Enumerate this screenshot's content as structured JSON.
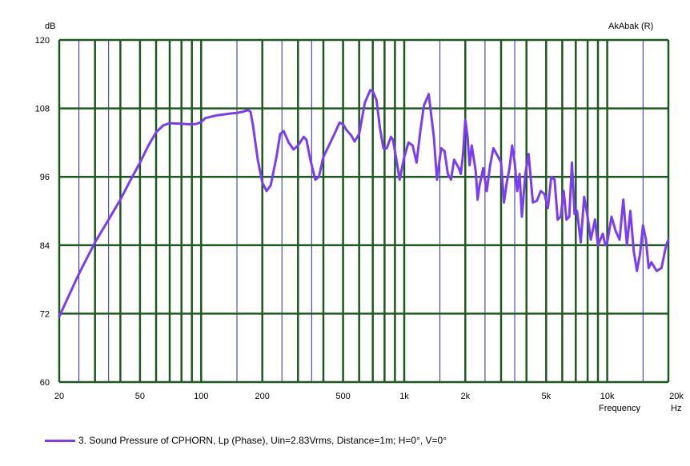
{
  "chart_data": {
    "type": "line",
    "ylabel": "dB",
    "xlabel": "Frequency",
    "x_unit": "Hz",
    "brand": "AkAbak (R)",
    "x_scale": "log",
    "xlim": [
      20,
      20000
    ],
    "ylim": [
      60,
      120
    ],
    "grid": true,
    "y_ticks": [
      {
        "value": 60,
        "label": "60"
      },
      {
        "value": 72,
        "label": "72"
      },
      {
        "value": 84,
        "label": "84"
      },
      {
        "value": 96,
        "label": "96"
      },
      {
        "value": 108,
        "label": "108"
      },
      {
        "value": 120,
        "label": "120"
      }
    ],
    "x_ticks": [
      {
        "value": 20,
        "label": "20"
      },
      {
        "value": 50,
        "label": "50"
      },
      {
        "value": 100,
        "label": "100"
      },
      {
        "value": 200,
        "label": "200"
      },
      {
        "value": 500,
        "label": "500"
      },
      {
        "value": 1000,
        "label": "1k"
      },
      {
        "value": 2000,
        "label": "2k"
      },
      {
        "value": 5000,
        "label": "5k"
      },
      {
        "value": 10000,
        "label": "10k"
      },
      {
        "value": 20000,
        "label": "20k"
      }
    ],
    "grid_major_x": [
      20,
      30,
      40,
      50,
      60,
      70,
      80,
      90,
      100,
      200,
      300,
      400,
      500,
      600,
      700,
      800,
      900,
      1000,
      2000,
      3000,
      4000,
      5000,
      6000,
      7000,
      8000,
      9000,
      10000,
      20000
    ],
    "grid_minor_x": [
      25,
      35,
      150,
      250,
      350,
      1500,
      2500,
      3500,
      15000
    ],
    "colors": {
      "grid_major": "#1e5a1e",
      "grid_minor": "#2a2ab0",
      "series": "#7a3cf5"
    },
    "legend_position": "bottom-left",
    "series": [
      {
        "name": "3. Sound Pressure of CPHORN, Lp (Phase), Uin=2.83Vrms, Distance=1m; H=0°, V=0°",
        "points": [
          [
            20,
            71.5
          ],
          [
            25,
            79
          ],
          [
            30,
            84.5
          ],
          [
            35,
            88.5
          ],
          [
            40,
            92
          ],
          [
            45,
            95.5
          ],
          [
            50,
            98.5
          ],
          [
            55,
            101.5
          ],
          [
            60,
            103.8
          ],
          [
            65,
            105
          ],
          [
            70,
            105.4
          ],
          [
            80,
            105.3
          ],
          [
            90,
            105.2
          ],
          [
            95,
            105.3
          ],
          [
            100,
            105.6
          ],
          [
            105,
            106.3
          ],
          [
            120,
            106.8
          ],
          [
            140,
            107.1
          ],
          [
            150,
            107.2
          ],
          [
            160,
            107.4
          ],
          [
            170,
            107.7
          ],
          [
            175,
            107.4
          ],
          [
            180,
            105
          ],
          [
            190,
            99
          ],
          [
            200,
            95
          ],
          [
            210,
            93.5
          ],
          [
            220,
            94.5
          ],
          [
            235,
            99.5
          ],
          [
            245,
            103.5
          ],
          [
            255,
            104
          ],
          [
            270,
            102
          ],
          [
            285,
            100.8
          ],
          [
            300,
            101.5
          ],
          [
            320,
            103
          ],
          [
            330,
            102.5
          ],
          [
            345,
            99
          ],
          [
            365,
            95.5
          ],
          [
            380,
            96
          ],
          [
            400,
            99.5
          ],
          [
            430,
            101.8
          ],
          [
            460,
            104
          ],
          [
            480,
            105.5
          ],
          [
            500,
            105.2
          ],
          [
            520,
            104.2
          ],
          [
            550,
            103.2
          ],
          [
            570,
            102.2
          ],
          [
            600,
            103.5
          ],
          [
            640,
            109
          ],
          [
            680,
            111.2
          ],
          [
            700,
            111
          ],
          [
            730,
            109.5
          ],
          [
            760,
            104.5
          ],
          [
            790,
            101
          ],
          [
            820,
            101
          ],
          [
            860,
            103
          ],
          [
            880,
            102.5
          ],
          [
            920,
            98.5
          ],
          [
            950,
            95.5
          ],
          [
            1000,
            99.5
          ],
          [
            1050,
            102
          ],
          [
            1100,
            101.5
          ],
          [
            1150,
            98.5
          ],
          [
            1200,
            104
          ],
          [
            1250,
            108.5
          ],
          [
            1320,
            110.5
          ],
          [
            1400,
            103
          ],
          [
            1450,
            95.5
          ],
          [
            1520,
            101
          ],
          [
            1580,
            100.5
          ],
          [
            1640,
            96.5
          ],
          [
            1700,
            95.5
          ],
          [
            1760,
            99
          ],
          [
            1860,
            97.5
          ],
          [
            1900,
            96.5
          ],
          [
            1950,
            100
          ],
          [
            2000,
            106
          ],
          [
            2050,
            103
          ],
          [
            2100,
            98
          ],
          [
            2150,
            101.5
          ],
          [
            2250,
            97
          ],
          [
            2300,
            92
          ],
          [
            2350,
            94.5
          ],
          [
            2450,
            97.5
          ],
          [
            2550,
            93.5
          ],
          [
            2650,
            98
          ],
          [
            2750,
            101
          ],
          [
            2900,
            99.5
          ],
          [
            3000,
            98.5
          ],
          [
            3100,
            91.5
          ],
          [
            3200,
            95
          ],
          [
            3300,
            97.5
          ],
          [
            3400,
            101.5
          ],
          [
            3500,
            98.5
          ],
          [
            3600,
            93.5
          ],
          [
            3700,
            96.5
          ],
          [
            3800,
            89
          ],
          [
            3950,
            96.5
          ],
          [
            4100,
            100
          ],
          [
            4300,
            91.5
          ],
          [
            4500,
            91.8
          ],
          [
            4700,
            93.5
          ],
          [
            4900,
            93
          ],
          [
            5100,
            90.5
          ],
          [
            5300,
            96
          ],
          [
            5500,
            95.5
          ],
          [
            5700,
            88.5
          ],
          [
            5900,
            89
          ],
          [
            6100,
            93.5
          ],
          [
            6300,
            88.5
          ],
          [
            6500,
            89
          ],
          [
            6700,
            98.5
          ],
          [
            6900,
            89.5
          ],
          [
            7100,
            90
          ],
          [
            7400,
            84.5
          ],
          [
            7700,
            92.5
          ],
          [
            8000,
            89
          ],
          [
            8300,
            85
          ],
          [
            8700,
            88.5
          ],
          [
            9000,
            84
          ],
          [
            9500,
            86
          ],
          [
            9800,
            84
          ],
          [
            10000,
            84.5
          ],
          [
            10500,
            89
          ],
          [
            11000,
            86.5
          ],
          [
            11500,
            85
          ],
          [
            12000,
            92
          ],
          [
            12500,
            84
          ],
          [
            13000,
            90
          ],
          [
            13500,
            83
          ],
          [
            14000,
            79.5
          ],
          [
            14500,
            82.5
          ],
          [
            15000,
            87.5
          ],
          [
            15500,
            85
          ],
          [
            16000,
            80
          ],
          [
            16500,
            81
          ],
          [
            17500,
            79.5
          ],
          [
            18500,
            80
          ],
          [
            19500,
            84
          ],
          [
            20000,
            85
          ]
        ]
      }
    ]
  }
}
